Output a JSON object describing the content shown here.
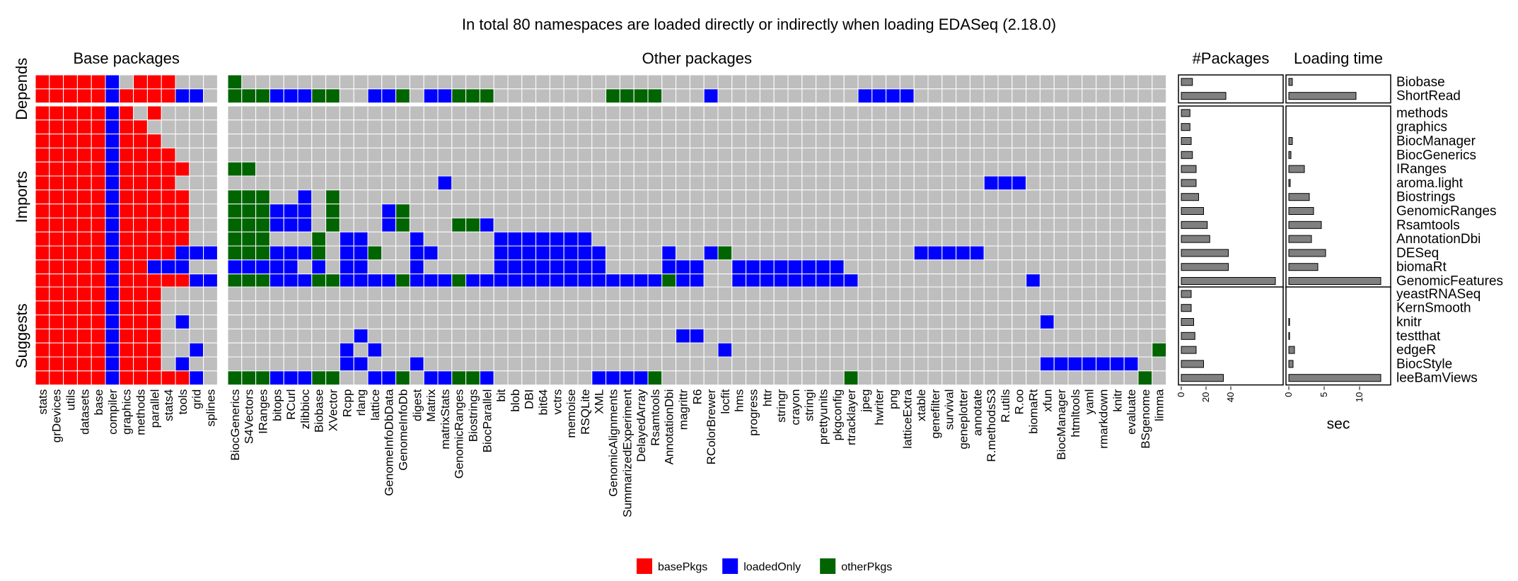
{
  "chart_data": {
    "type": "heatmap",
    "title": "In total 80 namespaces are loaded directly or indirectly when loading EDASeq (2.18.0)",
    "colors": {
      "basePkgs": "#ff0000",
      "loadedOnly": "#0000ff",
      "otherPkgs": "#006400",
      "none": "#bebebe"
    },
    "legend": {
      "position": "bottom",
      "entries": [
        {
          "key": "basePkgs",
          "label": "basePkgs"
        },
        {
          "key": "loadedOnly",
          "label": "loadedOnly"
        },
        {
          "key": "otherPkgs",
          "label": "otherPkgs"
        }
      ]
    },
    "column_groups": [
      {
        "label": "Base packages",
        "columns": [
          "stats",
          "grDevices",
          "utils",
          "datasets",
          "base",
          "compiler",
          "graphics",
          "methods",
          "parallel",
          "stats4",
          "tools",
          "grid",
          "splines"
        ]
      },
      {
        "label": "Other packages",
        "columns": [
          "BiocGenerics",
          "S4Vectors",
          "IRanges",
          "bitops",
          "RCurl",
          "zlibbioc",
          "Biobase",
          "XVector",
          "Rcpp",
          "rlang",
          "lattice",
          "GenomeInfoDbData",
          "GenomeInfoDb",
          "digest",
          "Matrix",
          "matrixStats",
          "GenomicRanges",
          "Biostrings",
          "BiocParallel",
          "bit",
          "blob",
          "DBI",
          "bit64",
          "vctrs",
          "memoise",
          "RSQLite",
          "XML",
          "GenomicAlignments",
          "SummarizedExperiment",
          "DelayedArray",
          "Rsamtools",
          "AnnotationDbi",
          "magrittr",
          "R6",
          "RColorBrewer",
          "locfit",
          "hms",
          "progress",
          "httr",
          "stringr",
          "crayon",
          "stringi",
          "prettyunits",
          "pkgconfig",
          "rtracklayer",
          "jpeg",
          "hwriter",
          "png",
          "latticeExtra",
          "xtable",
          "genefilter",
          "survival",
          "geneplotter",
          "annotate",
          "R.methodsS3",
          "R.utils",
          "R.oo",
          "biomaRt",
          "xfun",
          "BiocManager",
          "htmltools",
          "yaml",
          "rmarkdown",
          "knitr",
          "evaluate",
          "BSgenome",
          "limma"
        ]
      }
    ],
    "row_groups": [
      {
        "label": "Depends",
        "rows": [
          {
            "name": "Biobase",
            "packages": 9,
            "loading_time": 0.5,
            "base": "rrrrrb rrr",
            "other": {
              "g": [
                "BiocGenerics"
              ]
            }
          },
          {
            "name": "ShortRead",
            "packages": 36,
            "loading_time": 9.5,
            "base": "rrrrrbrrrrbb",
            "other": {
              "g": [
                "BiocGenerics",
                "S4Vectors",
                "IRanges",
                "Biobase",
                "XVector",
                "GenomeInfoDb",
                "GenomicRanges",
                "Biostrings",
                "BiocParallel",
                "GenomicAlignments",
                "SummarizedExperiment",
                "DelayedArray",
                "Rsamtools"
              ],
              "b": [
                "bitops",
                "RCurl",
                "zlibbioc",
                "lattice",
                "GenomeInfoDbData",
                "Matrix",
                "matrixStats",
                "RColorBrewer",
                "hwriter",
                "png",
                "latticeExtra",
                "jpeg"
              ]
            }
          }
        ]
      },
      {
        "label": "Imports",
        "rows": [
          {
            "name": "methods",
            "packages": 7,
            "loading_time": 0,
            "base": "rrrrrbr r",
            "other": {}
          },
          {
            "name": "graphics",
            "packages": 7,
            "loading_time": 0,
            "base": "rrrrrbrr",
            "other": {}
          },
          {
            "name": "BiocManager",
            "packages": 8,
            "loading_time": 0.5,
            "base": "rrrrrbrrr",
            "other": {}
          },
          {
            "name": "BiocGenerics",
            "packages": 9,
            "loading_time": 0.3,
            "base": "rrrrrbrrrr",
            "other": {}
          },
          {
            "name": "IRanges",
            "packages": 12,
            "loading_time": 2.2,
            "base": "rrrrrbrrrrr",
            "other": {
              "g": [
                "BiocGenerics",
                "S4Vectors"
              ]
            }
          },
          {
            "name": "aroma.light",
            "packages": 12,
            "loading_time": 0.2,
            "base": "rrrrrbrrrr",
            "other": {
              "b": [
                "matrixStats",
                "R.methodsS3",
                "R.utils",
                "R.oo"
              ]
            }
          },
          {
            "name": "Biostrings",
            "packages": 14,
            "loading_time": 2.9,
            "base": "rrrrrbrrrrr",
            "other": {
              "g": [
                "BiocGenerics",
                "S4Vectors",
                "IRanges",
                "XVector"
              ],
              "b": [
                "zlibbioc"
              ]
            }
          },
          {
            "name": "GenomicRanges",
            "packages": 18,
            "loading_time": 3.5,
            "base": "rrrrrbrrrrr",
            "other": {
              "g": [
                "BiocGenerics",
                "S4Vectors",
                "IRanges",
                "XVector",
                "GenomeInfoDb"
              ],
              "b": [
                "bitops",
                "RCurl",
                "zlibbioc",
                "GenomeInfoDbData"
              ]
            }
          },
          {
            "name": "Rsamtools",
            "packages": 21,
            "loading_time": 4.6,
            "base": "rrrrrbrrrrr",
            "other": {
              "g": [
                "BiocGenerics",
                "S4Vectors",
                "IRanges",
                "XVector",
                "GenomeInfoDb",
                "GenomicRanges",
                "Biostrings"
              ],
              "b": [
                "bitops",
                "RCurl",
                "zlibbioc",
                "GenomeInfoDbData",
                "BiocParallel"
              ]
            }
          },
          {
            "name": "AnnotationDbi",
            "packages": 23,
            "loading_time": 3.2,
            "base": "rrrrrbrrrrr",
            "other": {
              "g": [
                "BiocGenerics",
                "S4Vectors",
                "IRanges",
                "Biobase"
              ],
              "b": [
                "Rcpp",
                "rlang",
                "digest",
                "bit",
                "blob",
                "DBI",
                "bit64",
                "vctrs",
                "memoise",
                "RSQLite"
              ]
            }
          },
          {
            "name": "DESeq",
            "packages": 38,
            "loading_time": 5.2,
            "base": "rrrrrbrrrrbbb",
            "other": {
              "g": [
                "BiocGenerics",
                "S4Vectors",
                "IRanges",
                "Biobase",
                "lattice",
                "locfit"
              ],
              "b": [
                "bitops",
                "RCurl",
                "zlibbioc",
                "Rcpp",
                "rlang",
                "digest",
                "Matrix",
                "bit",
                "blob",
                "DBI",
                "bit64",
                "vctrs",
                "memoise",
                "RSQLite",
                "XML",
                "AnnotationDbi",
                "RColorBrewer",
                "xtable",
                "genefilter",
                "survival",
                "geneplotter",
                "annotate"
              ]
            }
          },
          {
            "name": "biomaRt",
            "packages": 38,
            "loading_time": 4.1,
            "base": "rrrrrbrrbbb",
            "other": {
              "b": [
                "BiocGenerics",
                "S4Vectors",
                "IRanges",
                "bitops",
                "RCurl",
                "Biobase",
                "Rcpp",
                "rlang",
                "digest",
                "bit",
                "blob",
                "DBI",
                "bit64",
                "vctrs",
                "memoise",
                "RSQLite",
                "XML",
                "AnnotationDbi",
                "magrittr",
                "R6",
                "hms",
                "progress",
                "httr",
                "stringr",
                "crayon",
                "stringi",
                "prettyunits",
                "pkgconfig"
              ]
            }
          },
          {
            "name": "GenomicFeatures",
            "packages": 76,
            "loading_time": 13,
            "base": "rrrrrbrrrrrbb",
            "other": {
              "g": [
                "BiocGenerics",
                "S4Vectors",
                "IRanges",
                "Biobase",
                "XVector",
                "GenomeInfoDb",
                "GenomicRanges",
                "AnnotationDbi"
              ],
              "b": [
                "bitops",
                "RCurl",
                "zlibbioc",
                "Rcpp",
                "rlang",
                "lattice",
                "GenomeInfoDbData",
                "digest",
                "Matrix",
                "matrixStats",
                "Biostrings",
                "BiocParallel",
                "bit",
                "blob",
                "DBI",
                "bit64",
                "vctrs",
                "memoise",
                "RSQLite",
                "XML",
                "GenomicAlignments",
                "SummarizedExperiment",
                "DelayedArray",
                "Rsamtools",
                "magrittr",
                "R6",
                "hms",
                "progress",
                "httr",
                "stringr",
                "crayon",
                "stringi",
                "prettyunits",
                "pkgconfig",
                "rtracklayer",
                "biomaRt"
              ]
            }
          }
        ]
      },
      {
        "label": "Suggests",
        "rows": [
          {
            "name": "yeastRNASeq",
            "packages": 8,
            "loading_time": 0,
            "base": "rrrrrbrrr",
            "other": {}
          },
          {
            "name": "KernSmooth",
            "packages": 8,
            "loading_time": 0,
            "base": "rrrrrbrrr",
            "other": {}
          },
          {
            "name": "knitr",
            "packages": 10,
            "loading_time": 0.1,
            "base": "rrrrrbrrr b",
            "other": {
              "b": [
                "xfun"
              ]
            }
          },
          {
            "name": "testthat",
            "packages": 11,
            "loading_time": 0.1,
            "base": "rrrrrbrrr",
            "other": {
              "b": [
                "rlang",
                "magrittr",
                "R6"
              ]
            }
          },
          {
            "name": "edgeR",
            "packages": 12,
            "loading_time": 0.8,
            "base": "rrrrrbrrr  b",
            "other": {
              "b": [
                "Rcpp",
                "lattice",
                "locfit"
              ],
              "g": [
                "limma"
              ]
            }
          },
          {
            "name": "BiocStyle",
            "packages": 18,
            "loading_time": 0.6,
            "base": "rrrrrbrrr b",
            "other": {
              "b": [
                "Rcpp",
                "rlang",
                "digest",
                "xfun",
                "BiocManager",
                "htmltools",
                "yaml",
                "rmarkdown",
                "knitr",
                "evaluate"
              ]
            }
          },
          {
            "name": "leeBamViews",
            "packages": 34,
            "loading_time": 13,
            "base": "rrrrrbrrrrrb",
            "other": {
              "g": [
                "BiocGenerics",
                "S4Vectors",
                "IRanges",
                "Biobase",
                "XVector",
                "GenomeInfoDb",
                "GenomicRanges",
                "Biostrings",
                "Rsamtools",
                "rtracklayer",
                "BSgenome"
              ],
              "b": [
                "bitops",
                "RCurl",
                "zlibbioc",
                "lattice",
                "GenomeInfoDbData",
                "Matrix",
                "matrixStats",
                "BiocParallel",
                "XML",
                "GenomicAlignments",
                "SummarizedExperiment",
                "DelayedArray"
              ]
            }
          }
        ]
      }
    ],
    "packages_panel": {
      "title": "#Packages",
      "xlim": [
        0,
        80
      ],
      "ticks": [
        0,
        20,
        40
      ]
    },
    "time_panel": {
      "title": "Loading time",
      "xlabel": "sec",
      "xlim": [
        0,
        14
      ],
      "ticks": [
        0,
        5,
        10
      ]
    }
  }
}
